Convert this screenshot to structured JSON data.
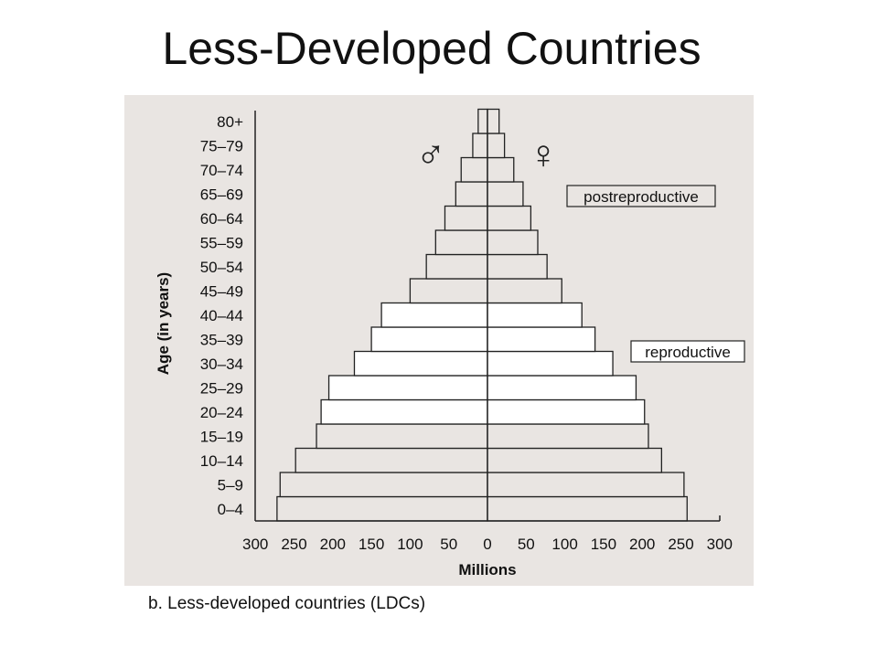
{
  "slide": {
    "title": "Less-Developed Countries",
    "caption": "b. Less-developed countries (LDCs)"
  },
  "colors": {
    "panel_bg": "#e9e5e2",
    "shaded_bar": "#e9e5e2",
    "white_bar": "#ffffff",
    "stroke": "#222222"
  },
  "chart_data": {
    "type": "bar",
    "orientation": "horizontal-population-pyramid",
    "ylabel": "Age (in years)",
    "xlabel": "Millions",
    "xlim_left": [
      300,
      0
    ],
    "xlim_right": [
      0,
      300
    ],
    "x_ticks_left": [
      "300",
      "250",
      "200",
      "150",
      "100",
      "50",
      "0"
    ],
    "x_ticks_right": [
      "50",
      "100",
      "150",
      "200",
      "250",
      "300"
    ],
    "categories": [
      "0–4",
      "5–9",
      "10–14",
      "15–19",
      "20–24",
      "25–29",
      "30–34",
      "35–39",
      "40–44",
      "45–49",
      "50–54",
      "55–59",
      "60–64",
      "65–69",
      "70–74",
      "75–79",
      "80+"
    ],
    "series": [
      {
        "name": "♂",
        "values": [
          272,
          268,
          248,
          221,
          215,
          205,
          172,
          150,
          137,
          100,
          79,
          67,
          55,
          41,
          34,
          19,
          12
        ]
      },
      {
        "name": "♀",
        "values": [
          258,
          254,
          225,
          208,
          203,
          192,
          162,
          139,
          122,
          96,
          77,
          65,
          56,
          46,
          34,
          22,
          15
        ]
      }
    ],
    "shading": [
      "shaded",
      "shaded",
      "shaded",
      "shaded",
      "white",
      "white",
      "white",
      "white",
      "white",
      "shaded",
      "shaded",
      "shaded",
      "shaded",
      "shaded",
      "shaded",
      "shaded",
      "shaded"
    ],
    "annotations": [
      "postreproductive",
      "reproductive"
    ],
    "symbols": {
      "male": "♂",
      "female": "♀"
    },
    "grid": false,
    "legend": "none"
  }
}
